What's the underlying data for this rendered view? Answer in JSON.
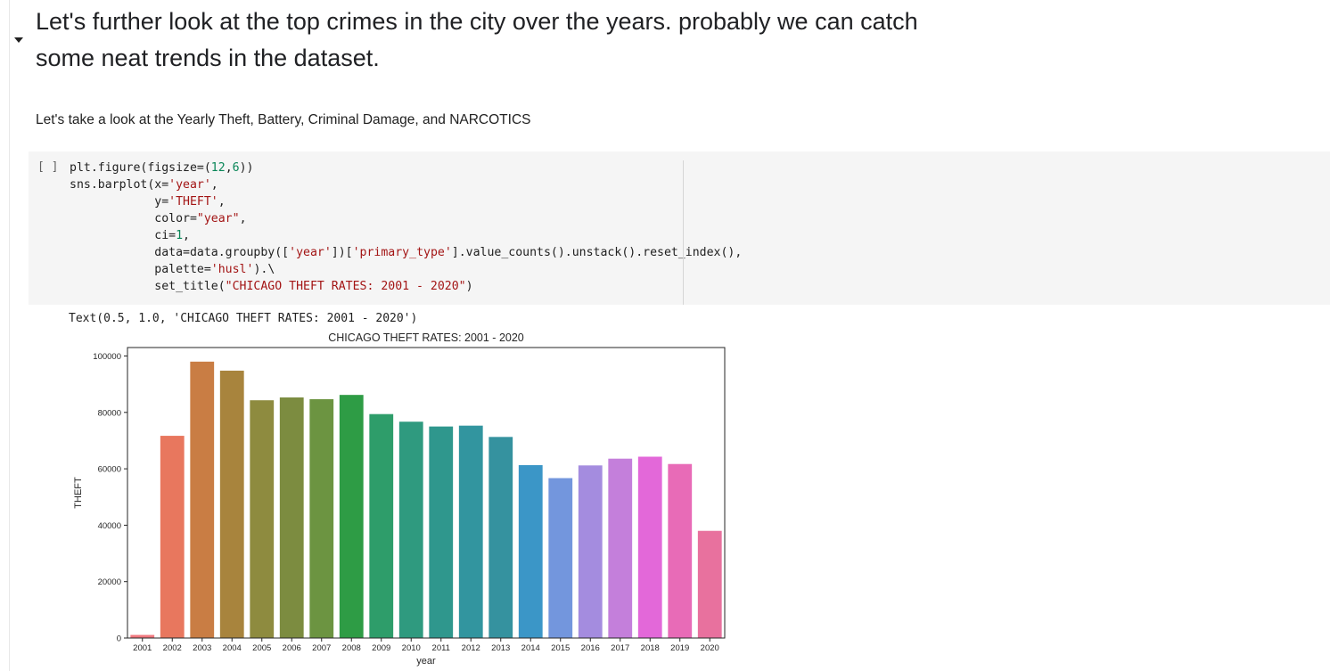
{
  "markdown": {
    "heading": "Let's further look at the top crimes in the city over the years. probably we can catch some neat trends in the dataset.",
    "subtext": "Let's take a look at the Yearly Theft, Battery, Criminal Damage, and NARCOTICS"
  },
  "code_cell": {
    "run_indicator": "[ ]",
    "lines": [
      [
        [
          "t",
          "plt.figure(figsize=("
        ],
        [
          "n",
          "12"
        ],
        [
          "t",
          ","
        ],
        [
          "n",
          "6"
        ],
        [
          "t",
          "))"
        ]
      ],
      [
        [
          "t",
          "sns.barplot(x="
        ],
        [
          "s",
          "'year'"
        ],
        [
          "t",
          ","
        ]
      ],
      [
        [
          "t",
          "            y="
        ],
        [
          "s",
          "'THEFT'"
        ],
        [
          "t",
          ","
        ]
      ],
      [
        [
          "t",
          "            color="
        ],
        [
          "s",
          "\"year\""
        ],
        [
          "t",
          ","
        ]
      ],
      [
        [
          "t",
          "            ci="
        ],
        [
          "n",
          "1"
        ],
        [
          "t",
          ","
        ]
      ],
      [
        [
          "t",
          "            data=data.groupby(["
        ],
        [
          "s",
          "'year'"
        ],
        [
          "t",
          "])["
        ],
        [
          "s",
          "'primary_type'"
        ],
        [
          "t",
          "].value_counts().unstack().reset_index(),"
        ]
      ],
      [
        [
          "t",
          "            palette="
        ],
        [
          "s",
          "'husl'"
        ],
        [
          "t",
          ").\\"
        ]
      ],
      [
        [
          "t",
          "            set_title("
        ],
        [
          "s",
          "\"CHICAGO THEFT RATES: 2001 - 2020\""
        ],
        [
          "t",
          ")"
        ]
      ]
    ]
  },
  "output": {
    "text": "Text(0.5, 1.0, 'CHICAGO THEFT RATES: 2001 - 2020')"
  },
  "chart_data": {
    "type": "bar",
    "title": "CHICAGO THEFT RATES: 2001 - 2020",
    "xlabel": "year",
    "ylabel": "THEFT",
    "ylim": [
      0,
      103000
    ],
    "yticks": [
      0,
      20000,
      40000,
      60000,
      80000,
      100000
    ],
    "categories": [
      "2001",
      "2002",
      "2003",
      "2004",
      "2005",
      "2006",
      "2007",
      "2008",
      "2009",
      "2010",
      "2011",
      "2012",
      "2013",
      "2014",
      "2015",
      "2016",
      "2017",
      "2018",
      "2019",
      "2020"
    ],
    "values": [
      1100,
      71700,
      98000,
      94800,
      84300,
      85300,
      84700,
      86200,
      79400,
      76700,
      75000,
      75300,
      71300,
      61300,
      56700,
      61200,
      63600,
      64300,
      61700,
      38000
    ],
    "colors": [
      "#f0787e",
      "#e8775e",
      "#c97d44",
      "#a8843d",
      "#8e8b3f",
      "#7c8c40",
      "#6c9441",
      "#2e9c45",
      "#2e9d6a",
      "#2f9a7f",
      "#2f978d",
      "#32959f",
      "#35929f",
      "#3b96c7",
      "#7396dd",
      "#a48cdf",
      "#c47fdb",
      "#e368d9",
      "#e86bb7",
      "#e8719e"
    ]
  }
}
